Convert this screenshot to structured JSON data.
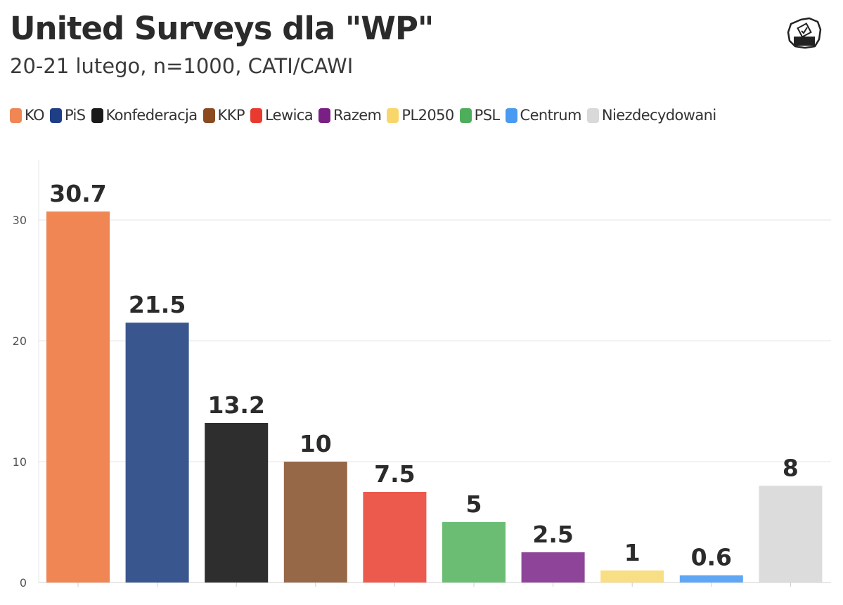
{
  "title": "United Surveys dla \"WP\"",
  "subtitle": "20-21 lutego, n=1000, CATI/CAWI",
  "logo": {
    "icon": "poland-ballot-box-icon"
  },
  "legend": [
    {
      "label": "KO",
      "color": "#EF8654"
    },
    {
      "label": "PiS",
      "color": "#1E3F85"
    },
    {
      "label": "Konfederacja",
      "color": "#1A1A1A"
    },
    {
      "label": "KKP",
      "color": "#8B4A20"
    },
    {
      "label": "Lewica",
      "color": "#E83A2E"
    },
    {
      "label": "Razem",
      "color": "#7A1F84"
    },
    {
      "label": "PL2050",
      "color": "#F9D66B"
    },
    {
      "label": "PSL",
      "color": "#4EAE5B"
    },
    {
      "label": "Centrum",
      "color": "#4A9AF2"
    },
    {
      "label": "Niezdecydowani",
      "color": "#D9D9D9"
    }
  ],
  "chart_data": {
    "type": "bar",
    "categories": [
      "KO",
      "PiS",
      "Konfederacja",
      "KKP",
      "Lewica",
      "Razem",
      "PL2050",
      "PSL",
      "Centrum",
      "Niezdecydowani"
    ],
    "bars": [
      {
        "category": "KO",
        "value": 30.7,
        "label": "30.7",
        "color": "#EF8654"
      },
      {
        "category": "PiS",
        "value": 21.5,
        "label": "21.5",
        "color": "#3A568E"
      },
      {
        "category": "Konfederacja",
        "value": 13.2,
        "label": "13.2",
        "color": "#2E2E2E"
      },
      {
        "category": "KKP",
        "value": 10,
        "label": "10",
        "color": "#966848"
      },
      {
        "category": "Lewica",
        "value": 7.5,
        "label": "7.5",
        "color": "#EC5A4E"
      },
      {
        "category": "PSL",
        "value": 5,
        "label": "5",
        "color": "#6BBD74"
      },
      {
        "category": "Razem",
        "value": 2.5,
        "label": "2.5",
        "color": "#8E4599"
      },
      {
        "category": "PL2050",
        "value": 1,
        "label": "1",
        "color": "#F8DE84"
      },
      {
        "category": "Centrum",
        "value": 0.6,
        "label": "0.6",
        "color": "#5FA7F4"
      },
      {
        "category": "Niezdecydowani",
        "value": 8,
        "label": "8",
        "color": "#DCDCDC"
      }
    ],
    "yticks": [
      "0",
      "10",
      "20",
      "30"
    ],
    "ylim": [
      0,
      35
    ],
    "grid": true,
    "legend_position": "top"
  }
}
